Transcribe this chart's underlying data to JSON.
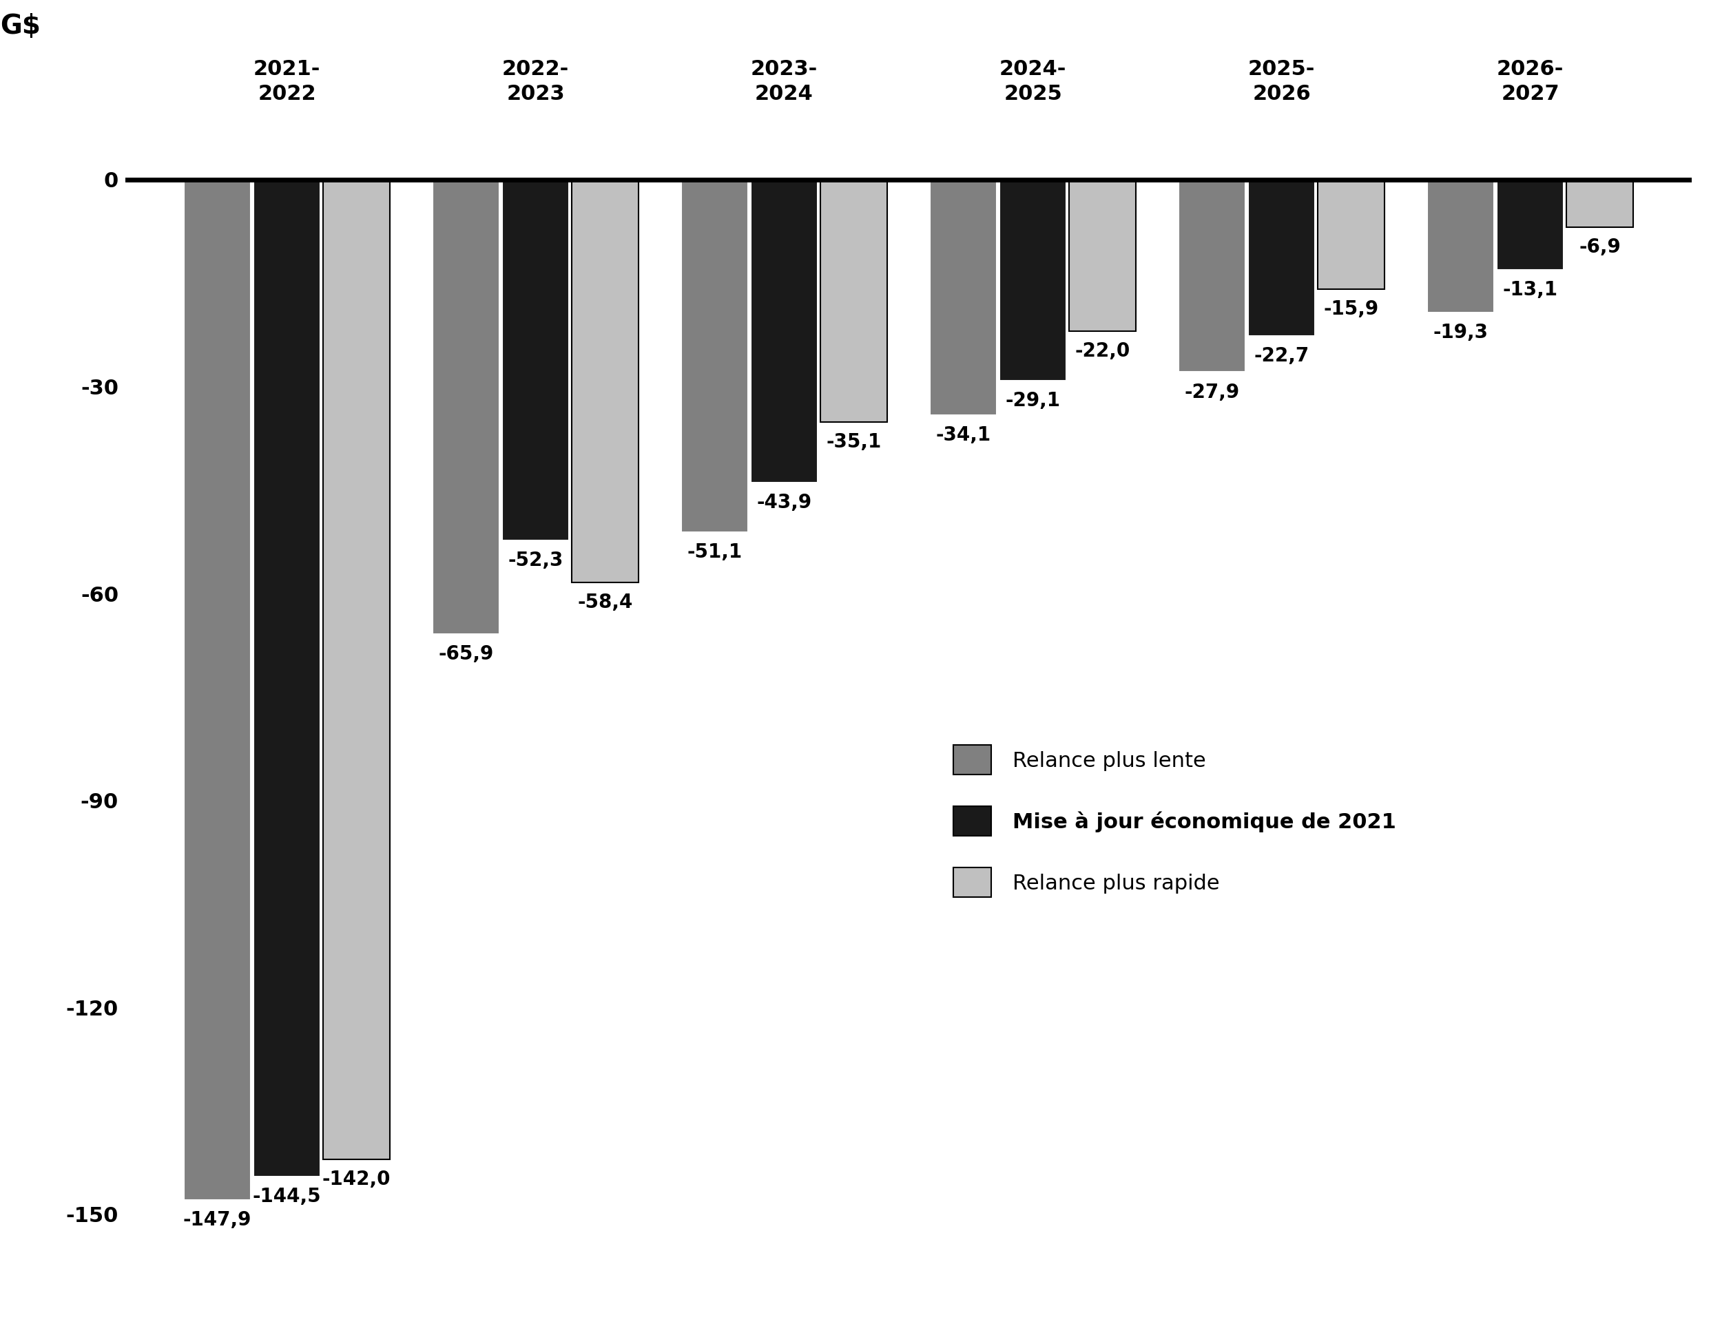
{
  "categories": [
    "2021-\n2022",
    "2022-\n2023",
    "2023-\n2024",
    "2024-\n2025",
    "2025-\n2026",
    "2026-\n2027"
  ],
  "relance_lente": [
    -147.9,
    -65.9,
    -51.1,
    -34.1,
    -27.9,
    -19.3
  ],
  "mise_a_jour": [
    -144.5,
    -52.3,
    -43.9,
    -29.1,
    -22.7,
    -13.1
  ],
  "relance_rapide": [
    -142.0,
    -58.4,
    -35.1,
    -22.0,
    -15.9,
    -6.9
  ],
  "labels_lente": [
    "-147,9",
    "-65,9",
    "-51,1",
    "-34,1",
    "-27,9",
    "-19,3"
  ],
  "labels_maj": [
    "-144,5",
    "-52,3",
    "-43,9",
    "-29,1",
    "-22,7",
    "-13,1"
  ],
  "labels_rapide": [
    "-142,0",
    "-58,4",
    "-35,1",
    "-22,0",
    "-15,9",
    "-6,9"
  ],
  "color_lente": "#808080",
  "color_maj": "#1a1a1a",
  "color_rapide": "#c0c0c0",
  "ylim": [
    -165,
    15
  ],
  "yticks": [
    0,
    -30,
    -60,
    -90,
    -120,
    -150
  ],
  "bar_width": 0.27,
  "bar_gap": 0.01,
  "legend_labels": [
    "Relance plus lente",
    "Mise à jour économique de 2021",
    "Relance plus rapide"
  ],
  "background_color": "#ffffff",
  "gs_fontsize": 28,
  "label_fontsize": 20,
  "tick_fontsize": 22,
  "cat_fontsize": 22,
  "legend_fontsize": 22
}
